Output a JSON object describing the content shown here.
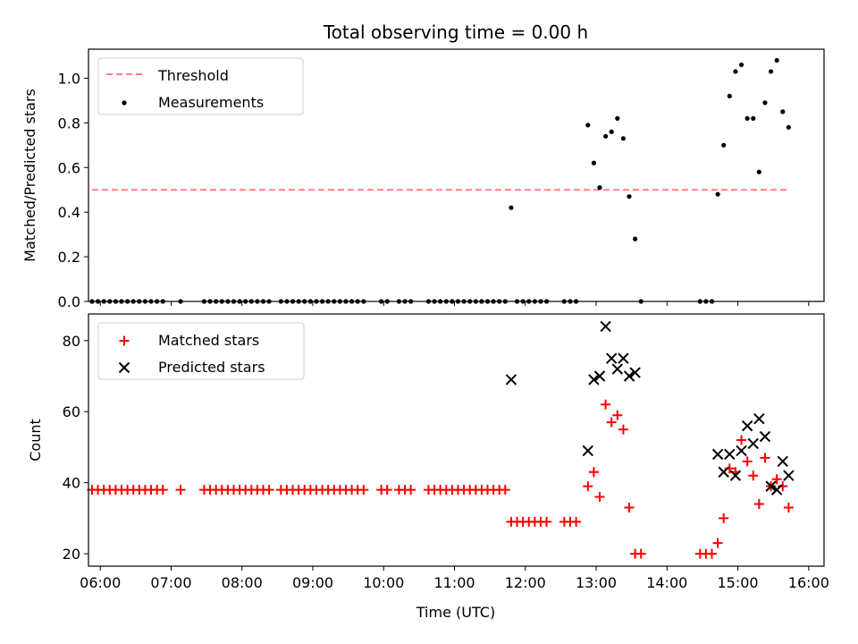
{
  "chart_data": [
    {
      "type": "scatter",
      "panel": "top",
      "title": "Total observing time = 0.00 h",
      "xlabel": "",
      "ylabel": "Matched/Predicted stars",
      "xlim": [
        "05:50",
        "16:13"
      ],
      "ylim": [
        0,
        1.13
      ],
      "yticks": [
        "0.0",
        "0.2",
        "0.4",
        "0.6",
        "0.8",
        "1.0"
      ],
      "grid": false,
      "legend": "top-left",
      "series": [
        {
          "name": "Threshold",
          "kind": "dashed-line",
          "color": "#ff7f7f",
          "points": [
            [
              "05:53",
              0.5
            ],
            [
              "15:44",
              0.5
            ]
          ]
        },
        {
          "name": "Measurements",
          "kind": "dot",
          "color": "#000000",
          "points": [
            [
              "05:53",
              0
            ],
            [
              "05:58",
              0
            ],
            [
              "06:03",
              0
            ],
            [
              "06:08",
              0
            ],
            [
              "06:13",
              0
            ],
            [
              "06:18",
              0
            ],
            [
              "06:23",
              0
            ],
            [
              "06:28",
              0
            ],
            [
              "06:33",
              0
            ],
            [
              "06:38",
              0
            ],
            [
              "06:43",
              0
            ],
            [
              "06:48",
              0
            ],
            [
              "06:53",
              0
            ],
            [
              "07:08",
              0
            ],
            [
              "07:28",
              0
            ],
            [
              "07:33",
              0
            ],
            [
              "07:38",
              0
            ],
            [
              "07:43",
              0
            ],
            [
              "07:48",
              0
            ],
            [
              "07:53",
              0
            ],
            [
              "07:58",
              0
            ],
            [
              "08:03",
              0
            ],
            [
              "08:08",
              0
            ],
            [
              "08:13",
              0
            ],
            [
              "08:18",
              0
            ],
            [
              "08:23",
              0
            ],
            [
              "08:33",
              0
            ],
            [
              "08:38",
              0
            ],
            [
              "08:43",
              0
            ],
            [
              "08:48",
              0
            ],
            [
              "08:53",
              0
            ],
            [
              "08:58",
              0
            ],
            [
              "09:03",
              0
            ],
            [
              "09:08",
              0
            ],
            [
              "09:13",
              0
            ],
            [
              "09:18",
              0
            ],
            [
              "09:23",
              0
            ],
            [
              "09:28",
              0
            ],
            [
              "09:33",
              0
            ],
            [
              "09:38",
              0
            ],
            [
              "09:43",
              0
            ],
            [
              "09:58",
              0
            ],
            [
              "10:03",
              0
            ],
            [
              "10:13",
              0
            ],
            [
              "10:18",
              0
            ],
            [
              "10:23",
              0
            ],
            [
              "10:38",
              0
            ],
            [
              "10:43",
              0
            ],
            [
              "10:48",
              0
            ],
            [
              "10:53",
              0
            ],
            [
              "10:58",
              0
            ],
            [
              "11:03",
              0
            ],
            [
              "11:08",
              0
            ],
            [
              "11:13",
              0
            ],
            [
              "11:18",
              0
            ],
            [
              "11:23",
              0
            ],
            [
              "11:28",
              0
            ],
            [
              "11:33",
              0
            ],
            [
              "11:38",
              0
            ],
            [
              "11:43",
              0
            ],
            [
              "11:48",
              0.42
            ],
            [
              "11:53",
              0
            ],
            [
              "11:58",
              0
            ],
            [
              "12:03",
              0
            ],
            [
              "12:08",
              0
            ],
            [
              "12:13",
              0
            ],
            [
              "12:18",
              0
            ],
            [
              "12:33",
              0
            ],
            [
              "12:38",
              0
            ],
            [
              "12:43",
              0
            ],
            [
              "12:53",
              0.79
            ],
            [
              "12:58",
              0.62
            ],
            [
              "13:03",
              0.51
            ],
            [
              "13:08",
              0.74
            ],
            [
              "13:13",
              0.76
            ],
            [
              "13:18",
              0.82
            ],
            [
              "13:23",
              0.73
            ],
            [
              "13:28",
              0.47
            ],
            [
              "13:33",
              0.28
            ],
            [
              "13:38",
              0
            ],
            [
              "14:28",
              0
            ],
            [
              "14:33",
              0
            ],
            [
              "14:38",
              0
            ],
            [
              "14:43",
              0.48
            ],
            [
              "14:48",
              0.7
            ],
            [
              "14:53",
              0.92
            ],
            [
              "14:58",
              1.03
            ],
            [
              "15:03",
              1.06
            ],
            [
              "15:08",
              0.82
            ],
            [
              "15:13",
              0.82
            ],
            [
              "15:18",
              0.58
            ],
            [
              "15:23",
              0.89
            ],
            [
              "15:28",
              1.03
            ],
            [
              "15:33",
              1.08
            ],
            [
              "15:38",
              0.85
            ],
            [
              "15:43",
              0.78
            ]
          ]
        }
      ]
    },
    {
      "type": "scatter",
      "panel": "bottom",
      "title": "",
      "xlabel": "Time (UTC)",
      "ylabel": "Count",
      "xlim": [
        "05:50",
        "16:13"
      ],
      "ylim": [
        16.5,
        87.5
      ],
      "xticks": [
        "06:00",
        "07:00",
        "08:00",
        "09:00",
        "10:00",
        "11:00",
        "12:00",
        "13:00",
        "14:00",
        "15:00",
        "16:00"
      ],
      "yticks": [
        "20",
        "40",
        "60",
        "80"
      ],
      "grid": false,
      "legend": "top-left",
      "series": [
        {
          "name": "Matched stars",
          "kind": "plus",
          "color": "#ff0000",
          "points": [
            [
              "05:53",
              38
            ],
            [
              "05:58",
              38
            ],
            [
              "06:03",
              38
            ],
            [
              "06:08",
              38
            ],
            [
              "06:13",
              38
            ],
            [
              "06:18",
              38
            ],
            [
              "06:23",
              38
            ],
            [
              "06:28",
              38
            ],
            [
              "06:33",
              38
            ],
            [
              "06:38",
              38
            ],
            [
              "06:43",
              38
            ],
            [
              "06:48",
              38
            ],
            [
              "06:53",
              38
            ],
            [
              "07:08",
              38
            ],
            [
              "07:28",
              38
            ],
            [
              "07:33",
              38
            ],
            [
              "07:38",
              38
            ],
            [
              "07:43",
              38
            ],
            [
              "07:48",
              38
            ],
            [
              "07:53",
              38
            ],
            [
              "07:58",
              38
            ],
            [
              "08:03",
              38
            ],
            [
              "08:08",
              38
            ],
            [
              "08:13",
              38
            ],
            [
              "08:18",
              38
            ],
            [
              "08:23",
              38
            ],
            [
              "08:33",
              38
            ],
            [
              "08:38",
              38
            ],
            [
              "08:43",
              38
            ],
            [
              "08:48",
              38
            ],
            [
              "08:53",
              38
            ],
            [
              "08:58",
              38
            ],
            [
              "09:03",
              38
            ],
            [
              "09:08",
              38
            ],
            [
              "09:13",
              38
            ],
            [
              "09:18",
              38
            ],
            [
              "09:23",
              38
            ],
            [
              "09:28",
              38
            ],
            [
              "09:33",
              38
            ],
            [
              "09:38",
              38
            ],
            [
              "09:43",
              38
            ],
            [
              "09:58",
              38
            ],
            [
              "10:03",
              38
            ],
            [
              "10:13",
              38
            ],
            [
              "10:18",
              38
            ],
            [
              "10:23",
              38
            ],
            [
              "10:38",
              38
            ],
            [
              "10:43",
              38
            ],
            [
              "10:48",
              38
            ],
            [
              "10:53",
              38
            ],
            [
              "10:58",
              38
            ],
            [
              "11:03",
              38
            ],
            [
              "11:08",
              38
            ],
            [
              "11:13",
              38
            ],
            [
              "11:18",
              38
            ],
            [
              "11:23",
              38
            ],
            [
              "11:28",
              38
            ],
            [
              "11:33",
              38
            ],
            [
              "11:38",
              38
            ],
            [
              "11:43",
              38
            ],
            [
              "11:48",
              29
            ],
            [
              "11:53",
              29
            ],
            [
              "11:58",
              29
            ],
            [
              "12:03",
              29
            ],
            [
              "12:08",
              29
            ],
            [
              "12:13",
              29
            ],
            [
              "12:18",
              29
            ],
            [
              "12:33",
              29
            ],
            [
              "12:38",
              29
            ],
            [
              "12:43",
              29
            ],
            [
              "12:53",
              39
            ],
            [
              "12:58",
              43
            ],
            [
              "13:03",
              36
            ],
            [
              "13:08",
              62
            ],
            [
              "13:13",
              57
            ],
            [
              "13:18",
              59
            ],
            [
              "13:23",
              55
            ],
            [
              "13:28",
              33
            ],
            [
              "13:33",
              20
            ],
            [
              "13:38",
              20
            ],
            [
              "14:28",
              20
            ],
            [
              "14:33",
              20
            ],
            [
              "14:38",
              20
            ],
            [
              "14:43",
              23
            ],
            [
              "14:48",
              30
            ],
            [
              "14:53",
              44
            ],
            [
              "14:58",
              43
            ],
            [
              "15:03",
              52
            ],
            [
              "15:08",
              46
            ],
            [
              "15:13",
              42
            ],
            [
              "15:18",
              34
            ],
            [
              "15:23",
              47
            ],
            [
              "15:28",
              39
            ],
            [
              "15:33",
              41
            ],
            [
              "15:38",
              39
            ],
            [
              "15:43",
              33
            ]
          ]
        },
        {
          "name": "Predicted stars",
          "kind": "x",
          "color": "#000000",
          "points": [
            [
              "11:48",
              69
            ],
            [
              "12:53",
              49
            ],
            [
              "12:58",
              69
            ],
            [
              "13:03",
              70
            ],
            [
              "13:08",
              84
            ],
            [
              "13:13",
              75
            ],
            [
              "13:18",
              72
            ],
            [
              "13:23",
              75
            ],
            [
              "13:28",
              70
            ],
            [
              "13:33",
              71
            ],
            [
              "14:43",
              48
            ],
            [
              "14:48",
              43
            ],
            [
              "14:53",
              48
            ],
            [
              "14:58",
              42
            ],
            [
              "15:03",
              49
            ],
            [
              "15:08",
              56
            ],
            [
              "15:13",
              51
            ],
            [
              "15:18",
              58
            ],
            [
              "15:23",
              53
            ],
            [
              "15:28",
              39
            ],
            [
              "15:33",
              38
            ],
            [
              "15:38",
              46
            ],
            [
              "15:43",
              42
            ]
          ]
        }
      ]
    }
  ]
}
